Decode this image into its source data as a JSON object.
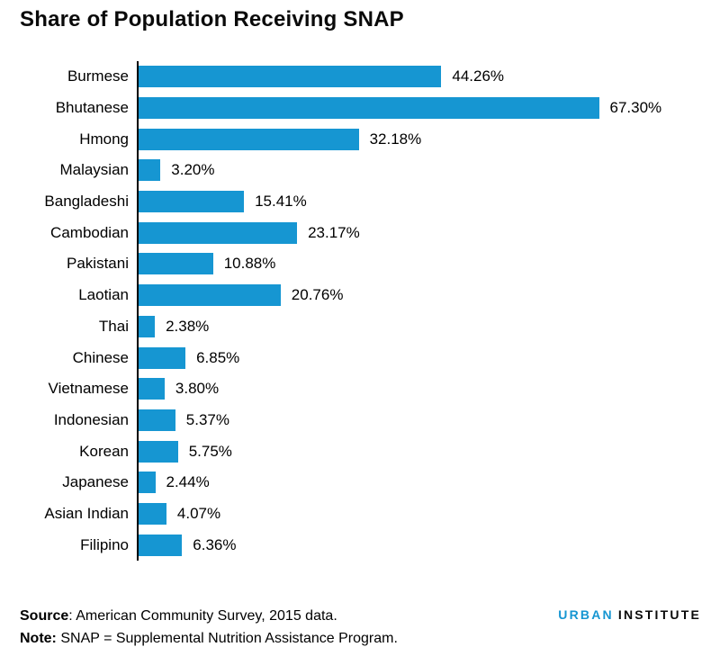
{
  "title": "Share of Population Receiving SNAP",
  "colors": {
    "bar": "#1696d2",
    "axis": "#000000",
    "text": "#000000",
    "logo_blue": "#1696d2",
    "logo_black": "#0a0a0a"
  },
  "chart_data": {
    "type": "bar",
    "orientation": "horizontal",
    "title": "Share of Population Receiving SNAP",
    "xlabel": "",
    "ylabel": "",
    "xlim": [
      0,
      70
    ],
    "grid": false,
    "legend": null,
    "categories": [
      "Burmese",
      "Bhutanese",
      "Hmong",
      "Malaysian",
      "Bangladeshi",
      "Cambodian",
      "Pakistani",
      "Laotian",
      "Thai",
      "Chinese",
      "Vietnamese",
      "Indonesian",
      "Korean",
      "Japanese",
      "Asian Indian",
      "Filipino"
    ],
    "values": [
      44.26,
      67.3,
      32.18,
      3.2,
      15.41,
      23.17,
      10.88,
      20.76,
      2.38,
      6.85,
      3.8,
      5.37,
      5.75,
      2.44,
      4.07,
      6.36
    ],
    "value_labels": [
      "44.26%",
      "67.30%",
      "32.18%",
      "3.20%",
      "15.41%",
      "23.17%",
      "10.88%",
      "20.76%",
      "2.38%",
      "6.85%",
      "3.80%",
      "5.37%",
      "5.75%",
      "2.44%",
      "4.07%",
      "6.36%"
    ]
  },
  "footer": {
    "source_label": "Source",
    "source_text": ": American Community Survey, 2015 data.",
    "note_label": "Note:",
    "note_text": " SNAP = Supplemental Nutrition Assistance Program."
  },
  "logo": {
    "part1": "URBAN",
    "part2": "INSTITUTE"
  }
}
